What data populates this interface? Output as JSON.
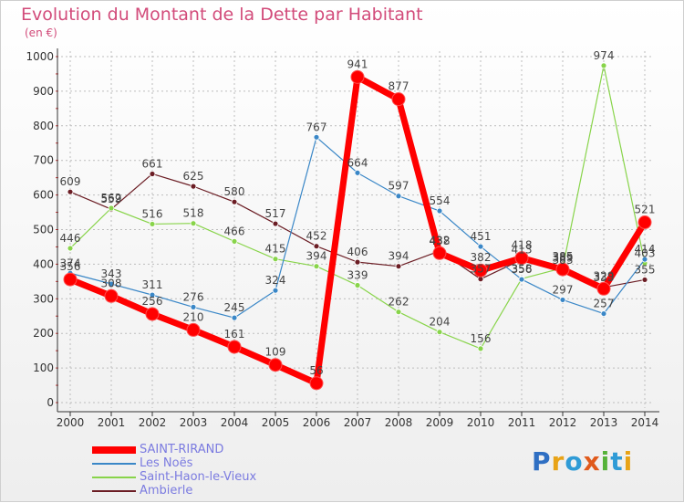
{
  "chart_data": {
    "type": "line",
    "title": "Evolution du Montant de la Dette par Habitant",
    "subtitle": "(en €)",
    "x": [
      "2000",
      "2001",
      "2002",
      "2003",
      "2004",
      "2005",
      "2006",
      "2007",
      "2008",
      "2009",
      "2010",
      "2011",
      "2012",
      "2013",
      "2014"
    ],
    "ylim": [
      0,
      1000
    ],
    "yticks": [
      "0",
      "100",
      "200",
      "300",
      "400",
      "500",
      "600",
      "700",
      "800",
      "900",
      "1000"
    ],
    "grid": true,
    "series": [
      {
        "name": "SAINT-RIRAND",
        "color": "#ff0000",
        "values": [
          356,
          308,
          256,
          210,
          161,
          109,
          56,
          941,
          877,
          432,
          382,
          418,
          385,
          329,
          521
        ]
      },
      {
        "name": "Les Noës",
        "color": "#3a87c7",
        "values": [
          374,
          343,
          311,
          276,
          245,
          324,
          767,
          664,
          597,
          554,
          451,
          356,
          297,
          257,
          414
        ]
      },
      {
        "name": "Saint-Haon-le-Vieux",
        "color": "#88d44a",
        "values": [
          446,
          562,
          516,
          518,
          466,
          415,
          394,
          339,
          262,
          204,
          156,
          358,
          389,
          974,
          403
        ]
      },
      {
        "name": "Ambierle",
        "color": "#6b1d24",
        "values": [
          609,
          559,
          661,
          625,
          580,
          517,
          452,
          406,
          394,
          438,
          357,
          413,
          383,
          333,
          355
        ]
      }
    ]
  },
  "logo": {
    "text": "Proxiti"
  }
}
